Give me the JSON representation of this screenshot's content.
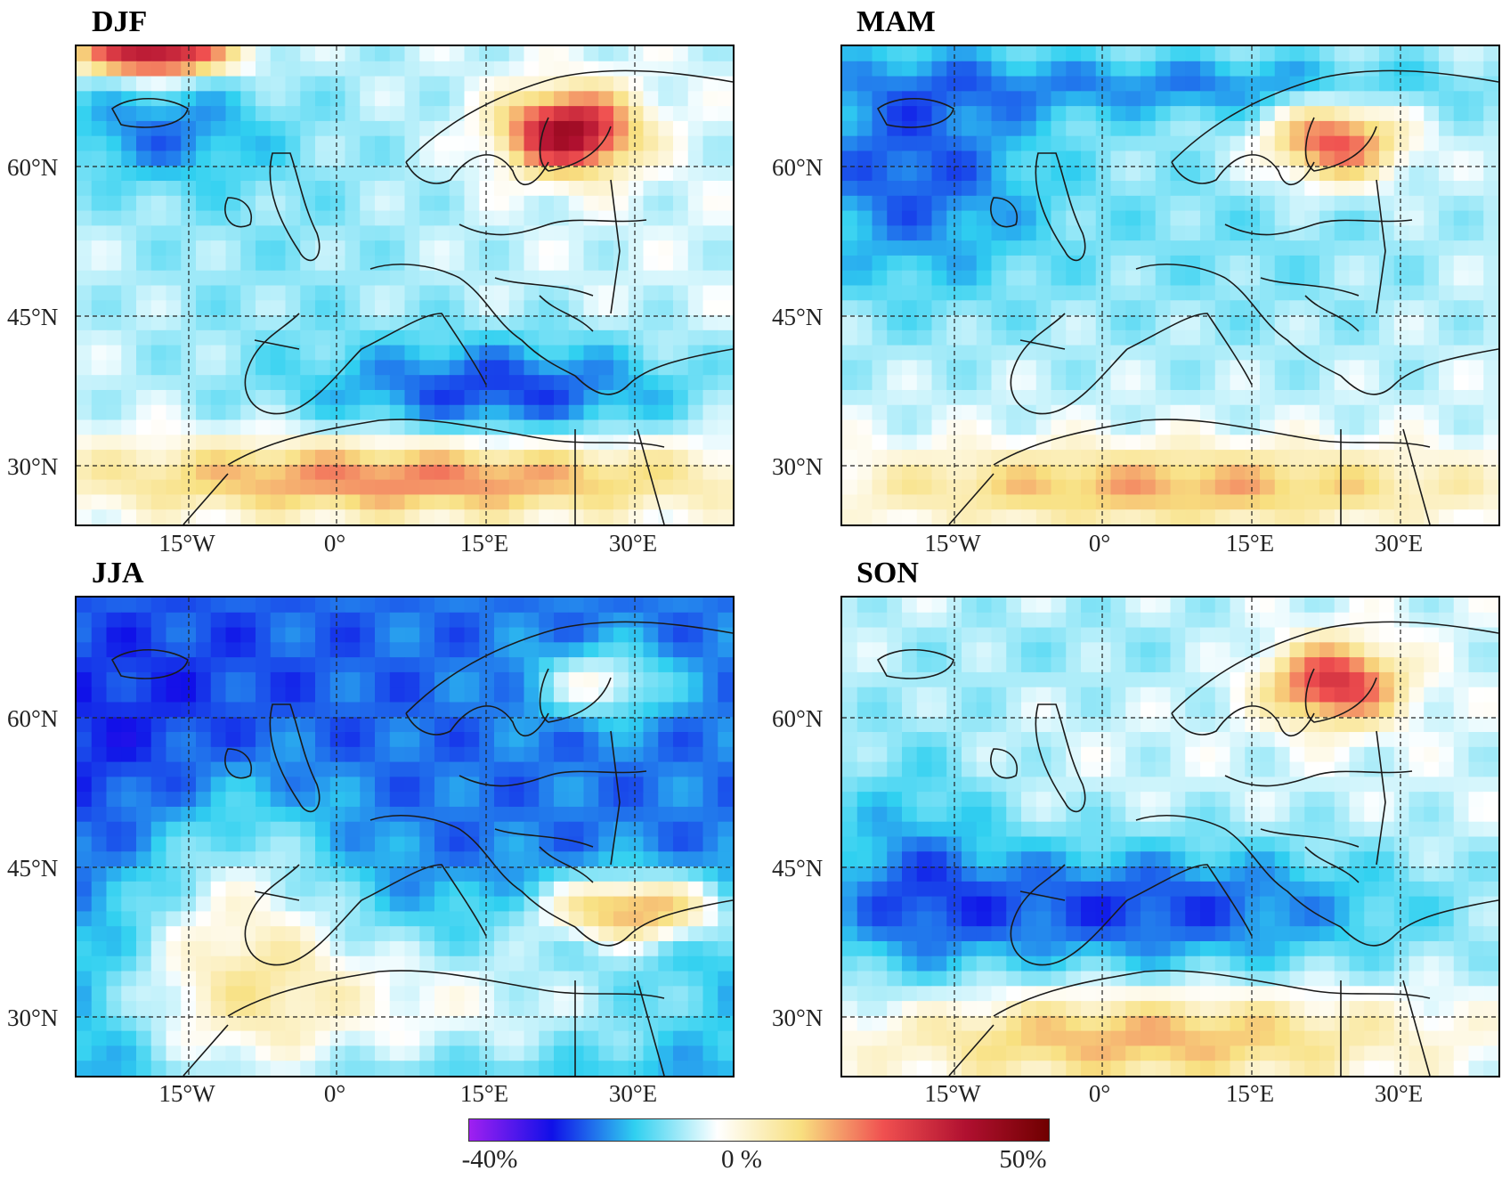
{
  "panels": [
    {
      "title": "DJF",
      "key": "djf"
    },
    {
      "title": "MAM",
      "key": "mam"
    },
    {
      "title": "JJA",
      "key": "jja"
    },
    {
      "title": "SON",
      "key": "son"
    }
  ],
  "axes": {
    "lat_ticks": [
      "60°N",
      "45°N",
      "30°N"
    ],
    "lon_ticks": [
      "15°W",
      "0°",
      "15°E",
      "30°E"
    ]
  },
  "colorbar": {
    "min_label": "-40%",
    "mid_label": "0 %",
    "max_label": "50%",
    "stops": [
      "#a020f0",
      "#1010e8",
      "#30d0f0",
      "#ffffff",
      "#f8e080",
      "#f05050",
      "#b01030",
      "#700000"
    ]
  }
}
